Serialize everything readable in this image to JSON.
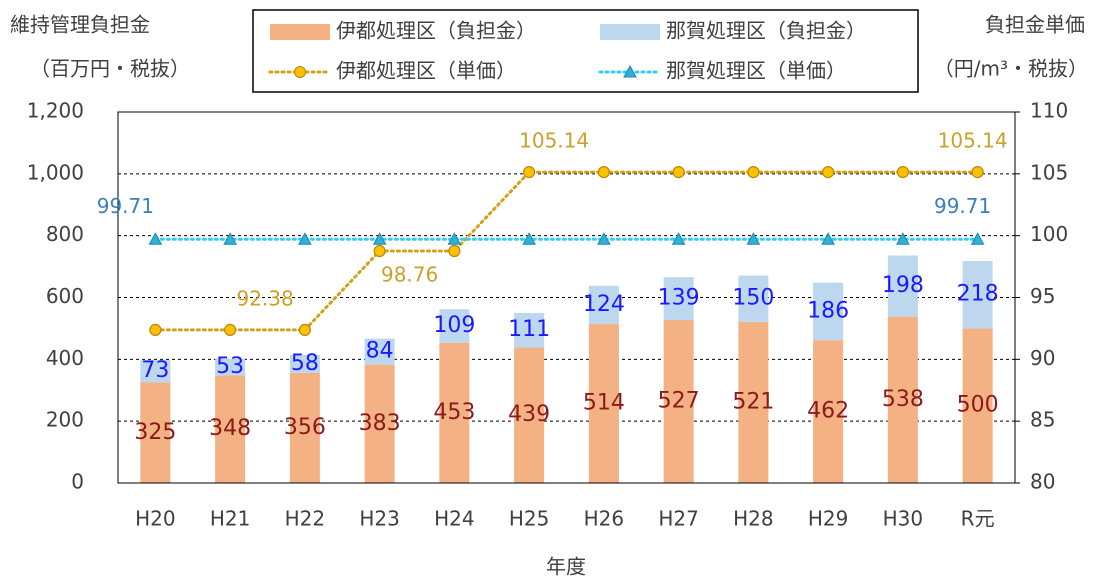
{
  "chart_data": {
    "type": "bar_line",
    "ylabel": [
      "維持管理負担金",
      "（百万円・税抜）"
    ],
    "y2label": [
      "負担金単価",
      "（円/m³・税抜）"
    ],
    "xlabel": "年度",
    "categories": [
      "H20",
      "H21",
      "H22",
      "H23",
      "H24",
      "H25",
      "H26",
      "H27",
      "H28",
      "H29",
      "H30",
      "R元"
    ],
    "series": [
      {
        "name": "伊都処理区（負担金）",
        "kind": "bar",
        "color": "#f4b183",
        "label_color": "#8b1a1a",
        "values": [
          325,
          348,
          356,
          383,
          453,
          439,
          514,
          527,
          521,
          462,
          538,
          500
        ]
      },
      {
        "name": "那賀処理区（負担金）",
        "kind": "bar",
        "color": "#bdd7ee",
        "label_color": "#1a1aff",
        "values": [
          73,
          53,
          58,
          84,
          109,
          111,
          124,
          139,
          150,
          186,
          198,
          218
        ]
      },
      {
        "name": "伊都処理区（単価）",
        "kind": "line",
        "axis": "y2",
        "color": "#d4a017",
        "marker": "circle",
        "label_color": "#c9a227",
        "values": [
          92.38,
          92.38,
          92.38,
          98.76,
          98.76,
          105.14,
          105.14,
          105.14,
          105.14,
          105.14,
          105.14,
          105.14
        ],
        "label_points": [
          1,
          3,
          5,
          11
        ]
      },
      {
        "name": "那賀処理区（単価）",
        "kind": "line",
        "axis": "y2",
        "color": "#33ccff",
        "marker": "triangle",
        "label_color": "#3a7fc0",
        "values": [
          99.71,
          99.71,
          99.71,
          99.71,
          99.71,
          99.71,
          99.71,
          99.71,
          99.71,
          99.71,
          99.71,
          99.71
        ],
        "label_points": [
          0,
          11
        ]
      }
    ],
    "ylim": [
      0,
      1200
    ],
    "yticks": [
      0,
      200,
      400,
      600,
      800,
      {
        "value": 1000,
        "label": "1,000"
      },
      {
        "value": 1200,
        "label": "1,200"
      }
    ],
    "y2lim": [
      80,
      110
    ],
    "y2ticks": [
      80,
      85,
      90,
      95,
      100,
      105,
      110
    ],
    "grid": true,
    "stacked": true
  }
}
